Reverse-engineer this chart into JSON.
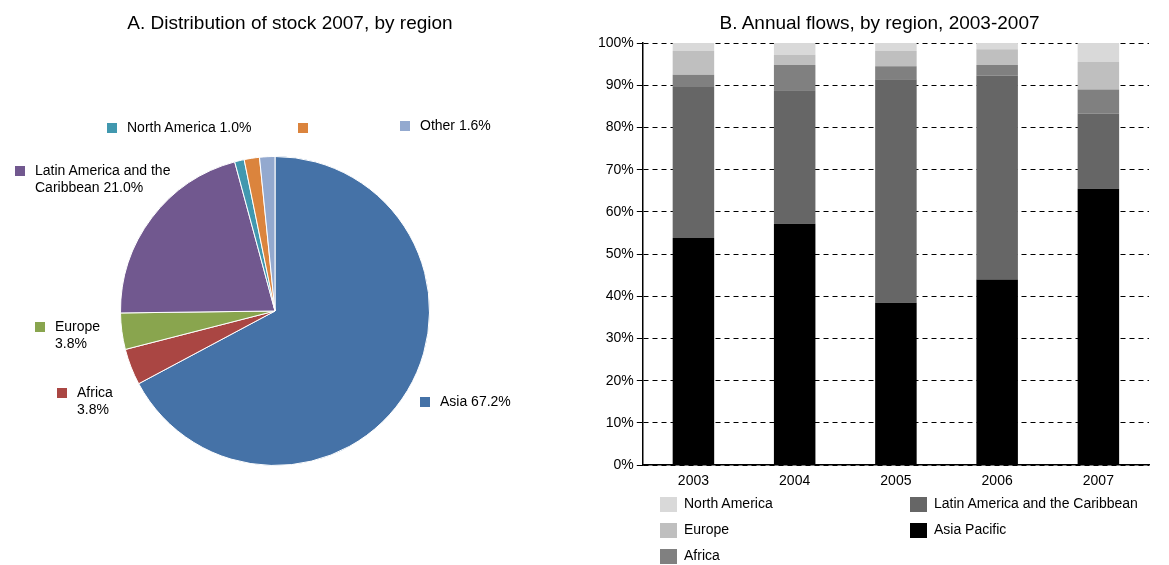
{
  "chart_data": [
    {
      "type": "pie",
      "title": "A.  Distribution of stock 2007, by region",
      "categories": [
        "Asia",
        "Africa",
        "Europe",
        "Latin America and the Caribbean",
        "North America",
        null,
        "Other"
      ],
      "values": [
        67.2,
        3.8,
        3.8,
        21.0,
        1.0,
        1.6,
        1.6
      ],
      "value_labels": [
        "67.2%",
        "3.8%",
        "3.8%",
        "21.0%",
        "1.0%",
        null,
        "1.6%"
      ],
      "colors": [
        "#4572a7",
        "#aa4643",
        "#89a54e",
        "#71588f",
        "#4198af",
        "#db843d",
        "#93a9cf"
      ],
      "legend": "left"
    },
    {
      "type": "bar",
      "title": "B.  Annual flows, by region, 2003-2007",
      "stacked": true,
      "categories": [
        "2003",
        "2004",
        "2005",
        "2006",
        "2007"
      ],
      "series": [
        {
          "name": "Asia Pacific",
          "color": "#000000",
          "values": [
            53.8,
            57.2,
            38.5,
            44.0,
            65.5
          ]
        },
        {
          "name": "Latin America and the Caribbean",
          "color": "#666666",
          "values": [
            35.8,
            31.6,
            52.9,
            48.3,
            17.8
          ]
        },
        {
          "name": "Africa",
          "color": "#808080",
          "values": [
            2.9,
            6.0,
            3.1,
            2.5,
            5.7
          ]
        },
        {
          "name": "Europe",
          "color": "#bfbfbf",
          "values": [
            5.6,
            2.4,
            3.6,
            3.7,
            6.5
          ]
        },
        {
          "name": "North America",
          "color": "#d9d9d9",
          "values": [
            1.9,
            2.8,
            1.9,
            1.5,
            4.5
          ]
        }
      ],
      "ylim": [
        0,
        100
      ],
      "yticks": [
        {
          "value": 0,
          "label": "0%"
        },
        {
          "value": 10,
          "label": "10%"
        },
        {
          "value": 20,
          "label": "20%"
        },
        {
          "value": 30,
          "label": "30%"
        },
        {
          "value": 40,
          "label": "40%"
        },
        {
          "value": 50,
          "label": "50%"
        },
        {
          "value": 60,
          "label": "60%"
        },
        {
          "value": 70,
          "label": "70%"
        },
        {
          "value": 80,
          "label": "80%"
        },
        {
          "value": 90,
          "label": "90%"
        },
        {
          "value": 100,
          "label": "100%"
        }
      ],
      "grid": "y",
      "legend": "bottom"
    }
  ]
}
